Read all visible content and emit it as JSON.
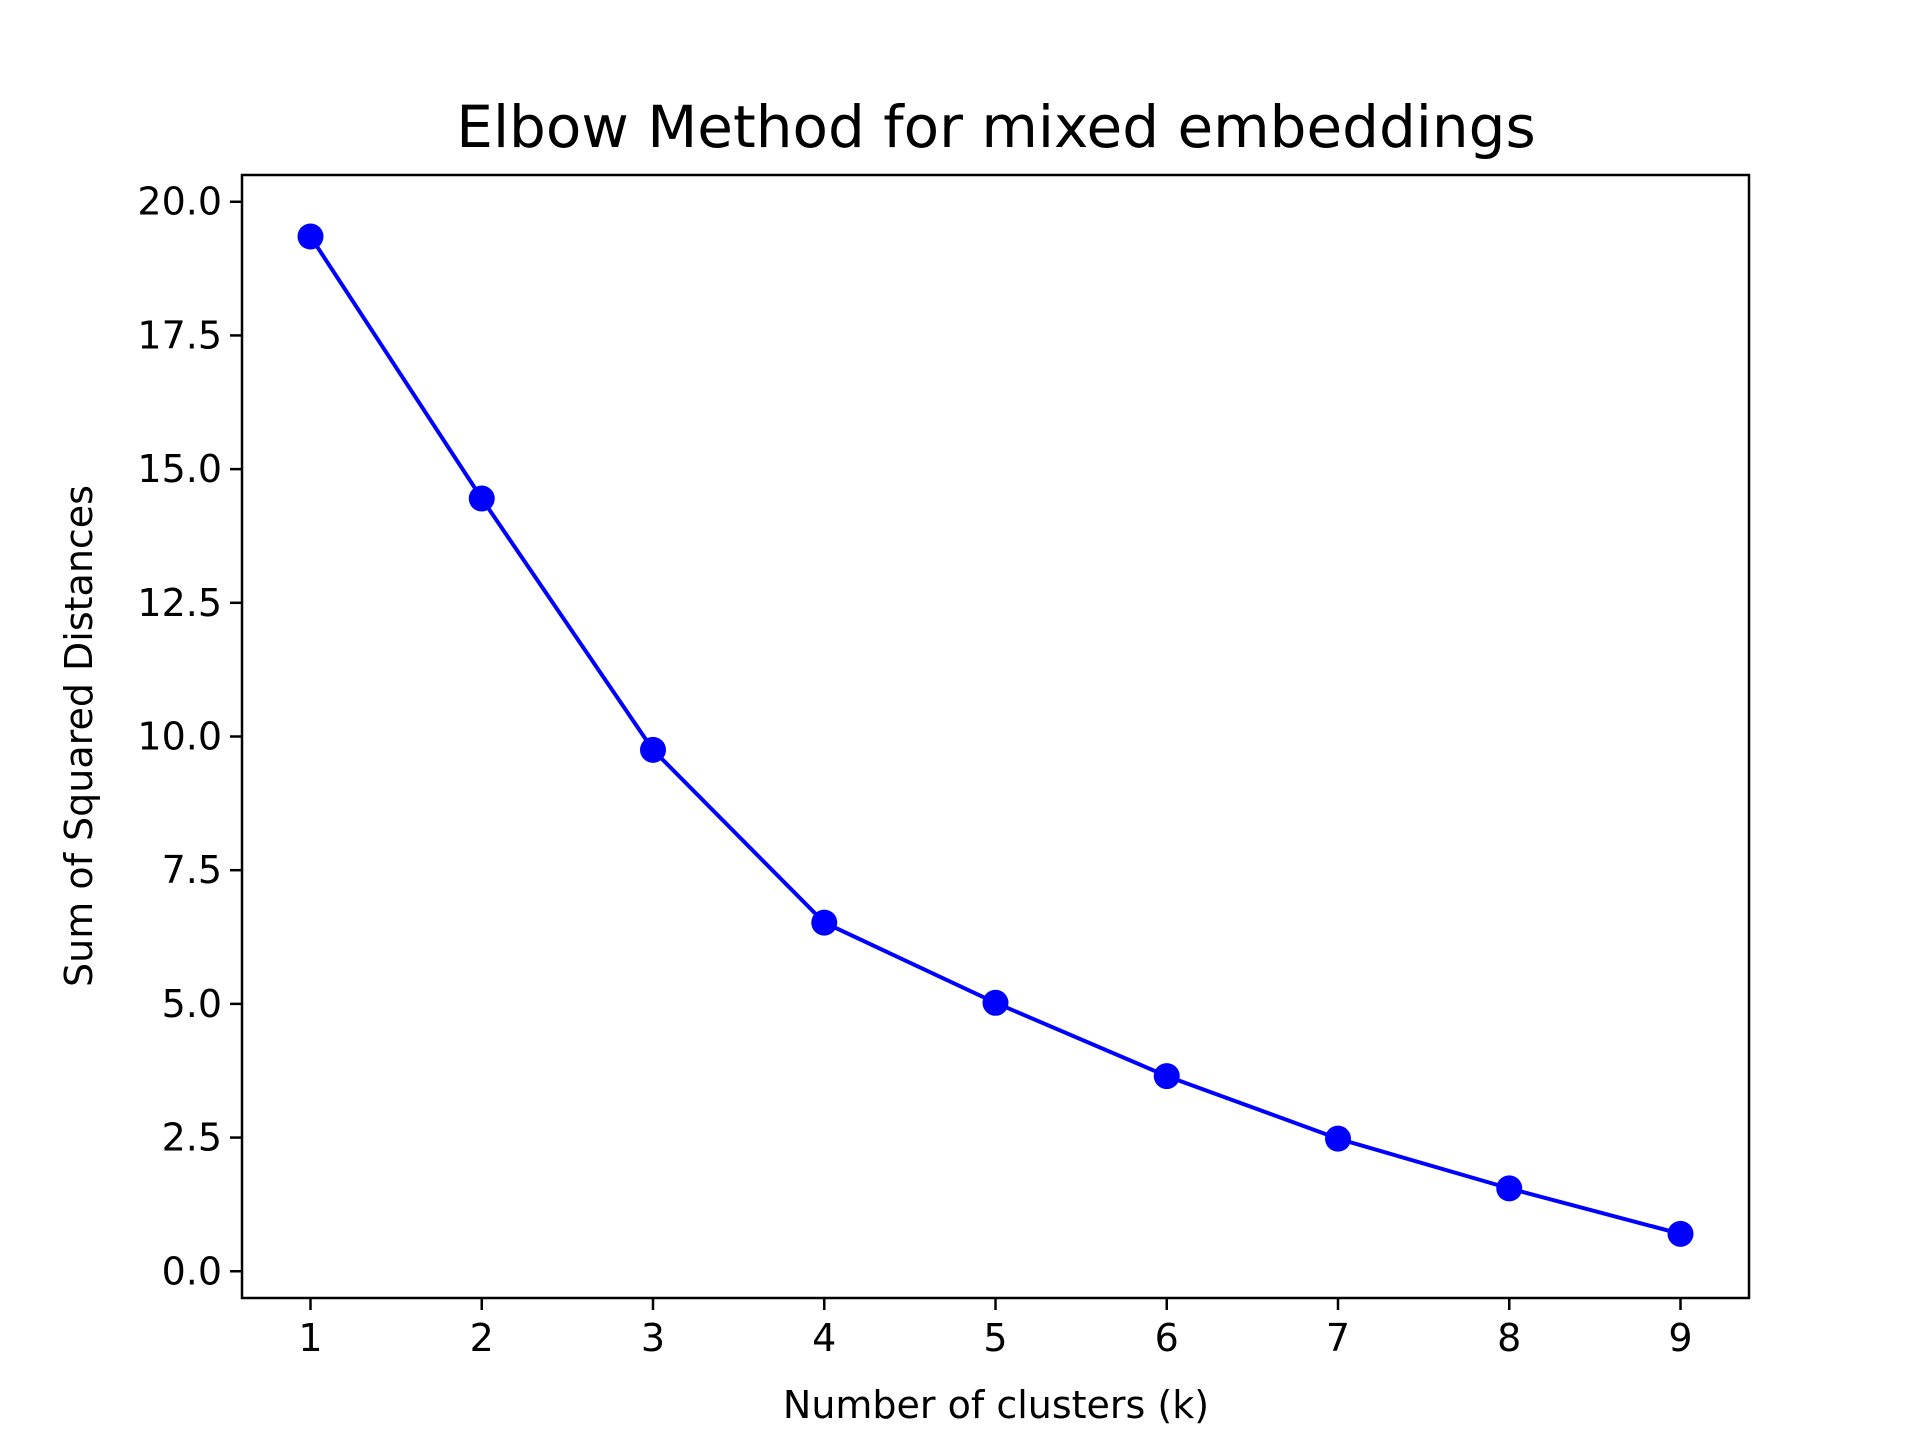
{
  "chart_data": {
    "type": "line",
    "title": "Elbow Method for mixed embeddings",
    "xlabel": "Number of clusters (k)",
    "ylabel": "Sum of Squared Distances",
    "x": [
      1,
      2,
      3,
      4,
      5,
      6,
      7,
      8,
      9
    ],
    "series": [
      {
        "values": [
          19.35,
          14.45,
          9.75,
          6.52,
          5.02,
          3.65,
          2.48,
          1.55,
          0.7
        ],
        "color": "#0000ff",
        "marker": "circle"
      }
    ],
    "xlim": [
      0.6,
      9.4
    ],
    "ylim": [
      -0.5,
      20.5
    ],
    "xticks": [
      1,
      2,
      3,
      4,
      5,
      6,
      7,
      8,
      9
    ],
    "xtick_labels": [
      "1",
      "2",
      "3",
      "4",
      "5",
      "6",
      "7",
      "8",
      "9"
    ],
    "yticks": [
      0.0,
      2.5,
      5.0,
      7.5,
      10.0,
      12.5,
      15.0,
      17.5,
      20.0
    ],
    "ytick_labels": [
      "0.0",
      "2.5",
      "5.0",
      "7.5",
      "10.0",
      "12.5",
      "15.0",
      "17.5",
      "20.0"
    ],
    "grid": false,
    "legend": "none"
  }
}
